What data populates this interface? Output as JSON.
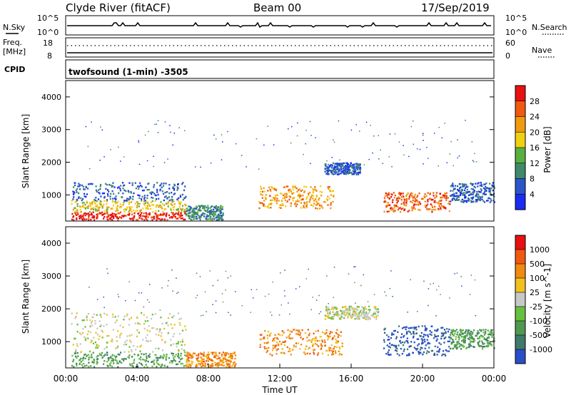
{
  "header": {
    "station": "Clyde River (fitACF)",
    "beam": "Beam 00",
    "date": "17/Sep/2019"
  },
  "noise_panel": {
    "left_label": "N.Sky",
    "right_label": "N.Search",
    "left_ticks": [
      "10^5",
      "10^0"
    ],
    "right_ticks": [
      "10^5",
      "10^0"
    ]
  },
  "freq_panel": {
    "left_label_line1": "Freq.",
    "left_label_line2": "[MHz]",
    "right_label": "Nave",
    "left_ticks": [
      "18",
      "8"
    ],
    "right_ticks": [
      "60",
      "0"
    ]
  },
  "cpid": {
    "label": "CPID",
    "value": "twofsound (1-min) -3505"
  },
  "chart_data": [
    {
      "type": "heatmap",
      "title": "",
      "parameter": "Power",
      "ylabel": "Slant Range [km]",
      "xlabel": "",
      "ylim": [
        200,
        4500
      ],
      "y_ticks": [
        "1000",
        "2000",
        "3000",
        "4000"
      ],
      "colorbar_label": "Power [dB]",
      "colorbar_ticks": [
        "4",
        "8",
        "12",
        "16",
        "20",
        "24",
        "28"
      ],
      "colorbar_colors": [
        "#1a2cf0",
        "#2a56c8",
        "#3f8a6a",
        "#59b040",
        "#f0d010",
        "#f09a10",
        "#f05a10",
        "#e81010"
      ],
      "regions": [
        {
          "t0": 0.3,
          "t1": 6.7,
          "r0": 250,
          "r1": 500,
          "level": 7
        },
        {
          "t0": 0.3,
          "t1": 6.7,
          "r0": 500,
          "r1": 850,
          "level": 4
        },
        {
          "t0": 0.3,
          "t1": 6.7,
          "r0": 850,
          "r1": 1400,
          "level": 1
        },
        {
          "t0": 6.7,
          "t1": 8.8,
          "r0": 250,
          "r1": 700,
          "level": 2
        },
        {
          "t0": 10.8,
          "t1": 15.0,
          "r0": 600,
          "r1": 1300,
          "level": 5
        },
        {
          "t0": 14.5,
          "t1": 16.5,
          "r0": 1650,
          "r1": 2000,
          "level": 1
        },
        {
          "t0": 17.8,
          "t1": 21.5,
          "r0": 500,
          "r1": 1100,
          "level": 6
        },
        {
          "t0": 21.5,
          "t1": 24.0,
          "r0": 800,
          "r1": 1400,
          "level": 1
        }
      ]
    },
    {
      "type": "heatmap",
      "title": "",
      "parameter": "Velocity",
      "ylabel": "Slant Range [km]",
      "xlabel": "Time UT",
      "ylim": [
        200,
        4500
      ],
      "y_ticks": [
        "1000",
        "2000",
        "3000",
        "4000"
      ],
      "x_ticks": [
        "00:00",
        "04:00",
        "08:00",
        "12:00",
        "16:00",
        "20:00",
        "00:00"
      ],
      "colorbar_label": "Velocity [m s^-1]",
      "colorbar_ticks": [
        "1000",
        "500",
        "100",
        "25",
        "-25",
        "-100",
        "-500",
        "-1000"
      ],
      "colorbar_colors": [
        "#2a4ec8",
        "#3f7a6a",
        "#4f9a50",
        "#66c040",
        "#c8c8c8",
        "#f0c020",
        "#f08a10",
        "#f05a10",
        "#e81010"
      ],
      "regions": [
        {
          "t0": 0.3,
          "t1": 6.7,
          "r0": 250,
          "r1": 700,
          "level": 2
        },
        {
          "t0": 0.3,
          "t1": 6.7,
          "r0": 700,
          "r1": 1900,
          "level": 4
        },
        {
          "t0": 6.7,
          "t1": 9.5,
          "r0": 250,
          "r1": 700,
          "level": 6
        },
        {
          "t0": 10.8,
          "t1": 15.5,
          "r0": 600,
          "r1": 1400,
          "level": 6
        },
        {
          "t0": 14.5,
          "t1": 17.5,
          "r0": 1700,
          "r1": 2100,
          "level": 4
        },
        {
          "t0": 17.8,
          "t1": 21.5,
          "r0": 600,
          "r1": 1500,
          "level": 0
        },
        {
          "t0": 21.5,
          "t1": 24.0,
          "r0": 800,
          "r1": 1400,
          "level": 2
        }
      ]
    }
  ]
}
